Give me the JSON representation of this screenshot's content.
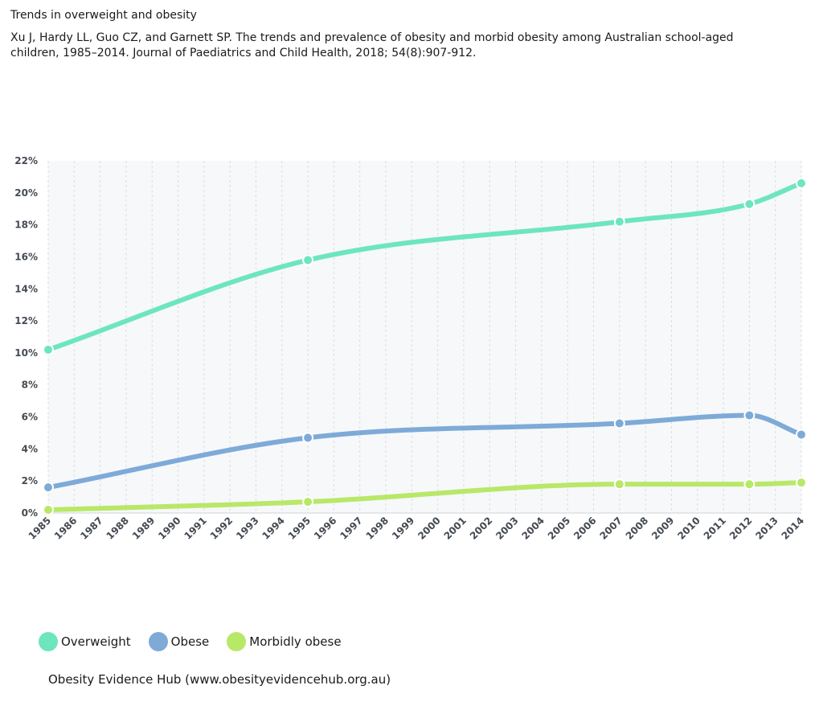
{
  "header": {
    "title": "Trends in overweight and obesity",
    "citation": "Xu J, Hardy LL, Guo CZ, and Garnett SP. The trends and prevalence of obesity and morbid obesity among Australian school-aged children, 1985–2014. Journal of Paediatrics and Child Health, 2018; 54(8):907-912."
  },
  "chart_data": {
    "type": "line",
    "title": "Trends in overweight and obesity",
    "xlabel": "",
    "ylabel": "",
    "x_categories": [
      "1985",
      "1986",
      "1987",
      "1988",
      "1989",
      "1990",
      "1991",
      "1992",
      "1993",
      "1994",
      "1995",
      "1996",
      "1997",
      "1998",
      "1999",
      "2000",
      "2001",
      "2002",
      "2003",
      "2004",
      "2005",
      "2006",
      "2007",
      "2008",
      "2009",
      "2010",
      "2011",
      "2012",
      "2013",
      "2014"
    ],
    "y_ticks": [
      "0%",
      "2%",
      "4%",
      "6%",
      "8%",
      "10%",
      "12%",
      "14%",
      "16%",
      "18%",
      "20%",
      "22%"
    ],
    "ylim": [
      0,
      22
    ],
    "grid": "vertical dashed",
    "legend_position": "bottom-left",
    "curve": "smooth",
    "series": [
      {
        "name": "Overweight",
        "color": "#6de6bd",
        "points": [
          {
            "x": "1985",
            "y": 10.2
          },
          {
            "x": "1995",
            "y": 15.8
          },
          {
            "x": "2007",
            "y": 18.2
          },
          {
            "x": "2012",
            "y": 19.3
          },
          {
            "x": "2014",
            "y": 20.6
          }
        ]
      },
      {
        "name": "Obese",
        "color": "#7eaad8",
        "points": [
          {
            "x": "1985",
            "y": 1.6
          },
          {
            "x": "1995",
            "y": 4.7
          },
          {
            "x": "2007",
            "y": 5.6
          },
          {
            "x": "2012",
            "y": 6.1
          },
          {
            "x": "2014",
            "y": 4.9
          }
        ]
      },
      {
        "name": "Morbidly obese",
        "color": "#b8e868",
        "points": [
          {
            "x": "1985",
            "y": 0.2
          },
          {
            "x": "1995",
            "y": 0.7
          },
          {
            "x": "2007",
            "y": 1.8
          },
          {
            "x": "2012",
            "y": 1.8
          },
          {
            "x": "2014",
            "y": 1.9
          }
        ]
      }
    ]
  },
  "footer": {
    "source": "Obesity Evidence Hub (www.obesityevidencehub.org.au)"
  }
}
